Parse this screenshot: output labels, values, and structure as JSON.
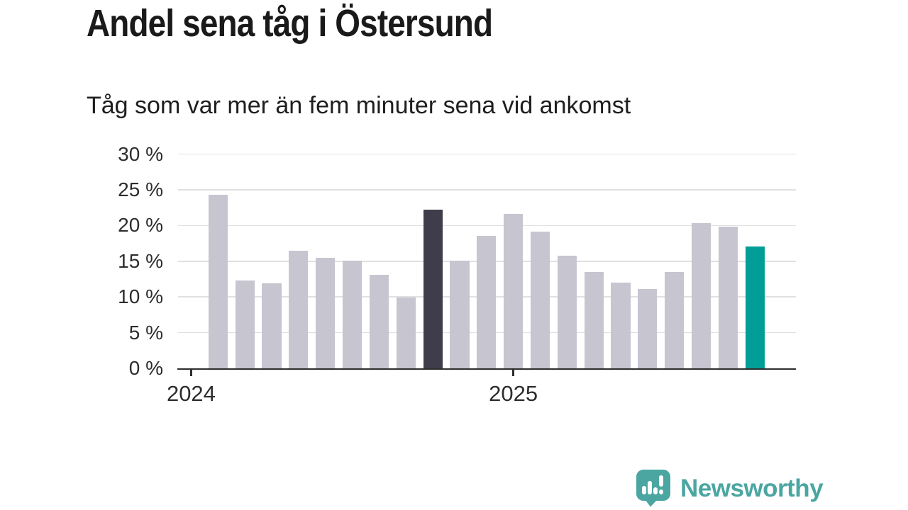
{
  "header": {
    "title": "Andel sena tåg i Östersund",
    "subtitle": "Tåg som var mer än fem minuter sena vid ankomst"
  },
  "chart_data": {
    "type": "bar",
    "title": "Andel sena tåg i Östersund",
    "subtitle": "Tåg som var mer än fem minuter sena vid ankomst",
    "unit": "%",
    "ylim": [
      0,
      30
    ],
    "y_ticks": [
      0,
      5,
      10,
      15,
      20,
      25,
      30
    ],
    "y_tick_labels": [
      "0 %",
      "5 %",
      "10 %",
      "15 %",
      "20 %",
      "25 %",
      "30 %"
    ],
    "x_tick_labels": [
      "2024",
      "2025"
    ],
    "x_tick_bar_offsets": [
      -1,
      11
    ],
    "values": [
      24.3,
      12.3,
      11.9,
      16.5,
      15.5,
      15.1,
      13.1,
      9.9,
      22.2,
      15.1,
      18.5,
      21.6,
      19.1,
      15.8,
      13.5,
      12.0,
      11.1,
      13.5,
      20.3,
      19.8,
      17.1
    ],
    "bar_roles": [
      "base",
      "base",
      "base",
      "base",
      "base",
      "base",
      "base",
      "base",
      "dark",
      "base",
      "base",
      "base",
      "base",
      "base",
      "base",
      "base",
      "base",
      "base",
      "base",
      "base",
      "teal"
    ],
    "colors": {
      "base": "#c7c5d0",
      "dark": "#3f3d4b",
      "teal": "#009e96",
      "gridline": "#e0e0e0",
      "axis": "#2e2e2e"
    },
    "grid": true,
    "legend_position": "none"
  },
  "branding": {
    "name": "Newsworthy",
    "color": "#4ba6a2",
    "icon": "newsworthy-speech-bubble-chart-icon"
  }
}
